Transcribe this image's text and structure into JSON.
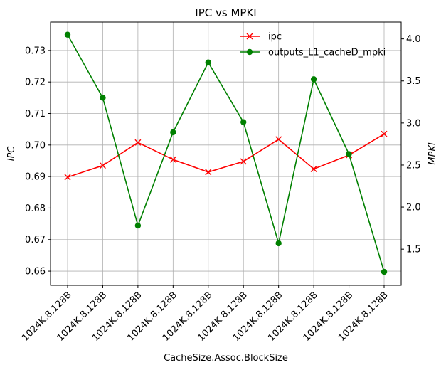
{
  "chart_data": {
    "type": "line",
    "title": "IPC vs MPKI",
    "xlabel": "CacheSize.Assoc.BlockSize",
    "ylabel": "IPC",
    "y2label": "MPKI",
    "categories": [
      "1024K.8.128B",
      "1024K.8.128B",
      "1024K.8.128B",
      "1024K.8.128B",
      "1024K.8.128B",
      "1024K.8.128B",
      "1024K.8.128B",
      "1024K.8.128B",
      "1024K.8.128B",
      "1024K.8.128B"
    ],
    "ylim": [
      0.6555,
      0.739
    ],
    "y2lim": [
      1.07,
      4.2
    ],
    "yticks": [
      0.66,
      0.67,
      0.68,
      0.69,
      0.7,
      0.71,
      0.72,
      0.73
    ],
    "ytick_labels": [
      "0.66",
      "0.67",
      "0.68",
      "0.69",
      "0.70",
      "0.71",
      "0.72",
      "0.73"
    ],
    "y2ticks": [
      1.5,
      2.0,
      2.5,
      3.0,
      3.5,
      4.0
    ],
    "y2tick_labels": [
      "1.5",
      "2.0",
      "2.5",
      "3.0",
      "3.5",
      "4.0"
    ],
    "grid": true,
    "legend_position": "top-right",
    "series": [
      {
        "name": "ipc",
        "axis": "left",
        "marker": "x",
        "color": "#ff0000",
        "values": [
          0.6898,
          0.6935,
          0.7008,
          0.6954,
          0.6914,
          0.6948,
          0.7018,
          0.6924,
          0.6968,
          0.7035
        ]
      },
      {
        "name": "outputs_L1_cacheD_mpki",
        "axis": "right",
        "marker": "o",
        "color": "#008000",
        "values": [
          4.05,
          3.3,
          1.78,
          2.89,
          3.72,
          3.01,
          1.57,
          3.52,
          2.63,
          1.23
        ]
      }
    ]
  }
}
